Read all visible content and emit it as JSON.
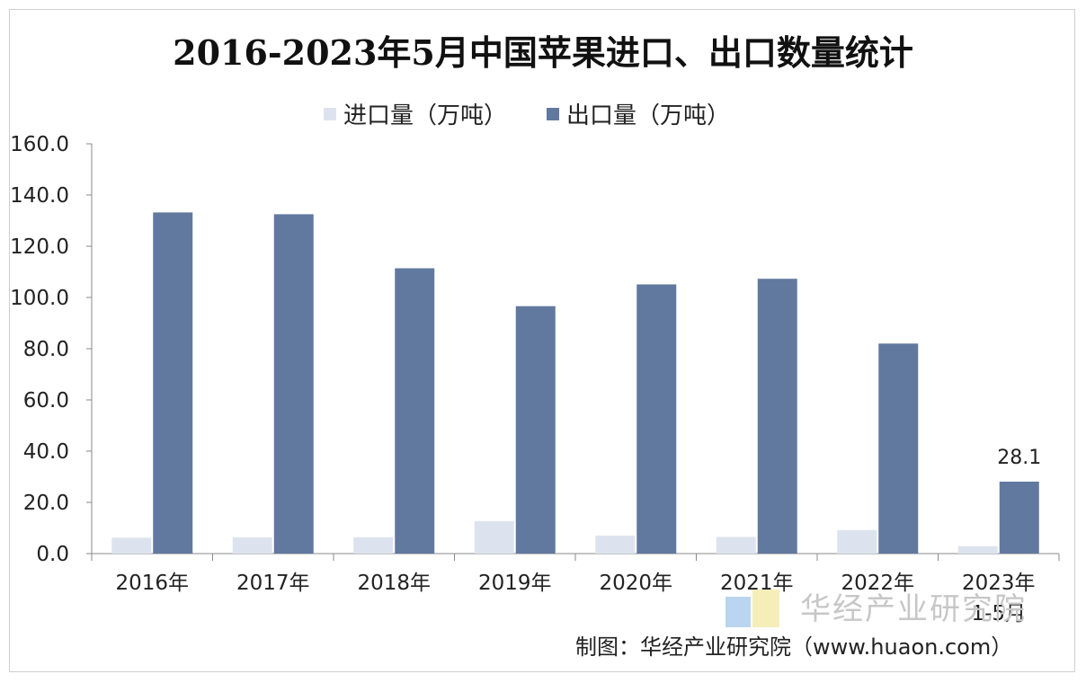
{
  "title": "2016-2023年5月中国苹果进口、出口数量统计",
  "legend": {
    "import_label": "进口量（万吨）",
    "export_label": "出口量（万吨）"
  },
  "footer": "制图：华经产业研究院（www.huaon.com）",
  "watermark": "华经产业研究院",
  "colors": {
    "import": "#dde3ee",
    "export": "#61799f",
    "axis": "#8a8a8a",
    "watermark_blue": "#9dc3ea",
    "watermark_yellow": "#f2e79b"
  },
  "chart_data": {
    "type": "bar",
    "categories": [
      "2016年",
      "2017年",
      "2018年",
      "2019年",
      "2020年",
      "2021年",
      "2022年",
      "2023年\n1-5月"
    ],
    "series": [
      {
        "name": "进口量（万吨）",
        "values": [
          6.2,
          6.3,
          6.4,
          12.7,
          7.0,
          6.5,
          9.2,
          2.9
        ]
      },
      {
        "name": "出口量（万吨）",
        "values": [
          133.2,
          132.5,
          111.4,
          96.6,
          105.1,
          107.3,
          82.0,
          28.1
        ]
      }
    ],
    "ylim": [
      0,
      160
    ],
    "yticks": [
      "0.0",
      "20.0",
      "40.0",
      "60.0",
      "80.0",
      "100.0",
      "120.0",
      "140.0",
      "160.0"
    ],
    "data_labels": [
      {
        "series": 1,
        "index": 7,
        "text": "28.1"
      }
    ],
    "grid": false,
    "legend_position": "top"
  }
}
